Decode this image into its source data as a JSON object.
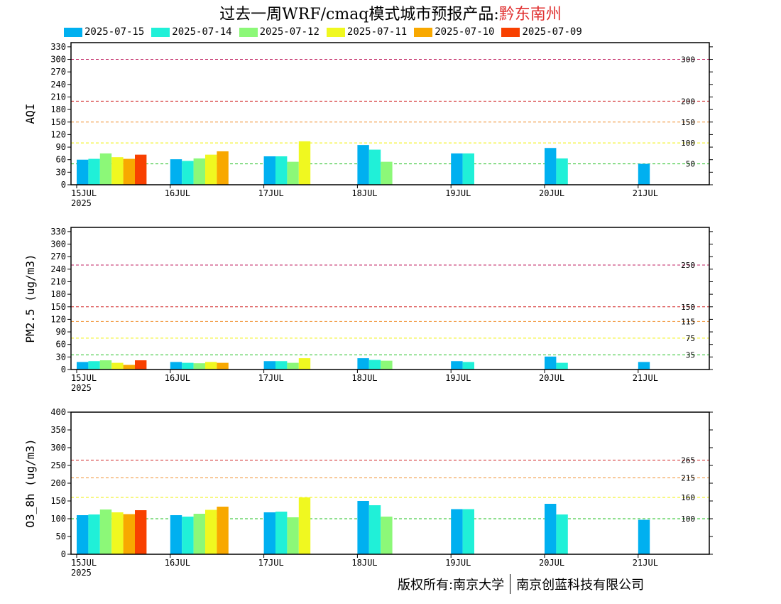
{
  "title": {
    "prefix": "过去一周WRF/cmaq模式城市预报产品:",
    "city": "黔东南州"
  },
  "footer": {
    "left": "版权所有:南京大学",
    "right": "南京创蓝科技有限公司"
  },
  "colors": {
    "2025-07-15": "#00b0f0",
    "2025-07-14": "#20f0d8",
    "2025-07-12": "#8cf878",
    "2025-07-11": "#f0f820",
    "2025-07-10": "#f8a800",
    "2025-07-09": "#f84000"
  },
  "chart_data": [
    {
      "type": "bar",
      "ylabel": "AQI",
      "ylim": [
        0,
        340
      ],
      "yticks": [
        0,
        30,
        60,
        90,
        120,
        150,
        180,
        210,
        240,
        270,
        300,
        330
      ],
      "xtick_labels": [
        "15JUL",
        "16JUL",
        "17JUL",
        "18JUL",
        "19JUL",
        "20JUL",
        "21JUL"
      ],
      "year_label": "2025",
      "thresholds": [
        {
          "value": 300,
          "label": "300",
          "color": "#c02060"
        },
        {
          "value": 200,
          "label": "200",
          "color": "#d02020"
        },
        {
          "value": 150,
          "label": "150",
          "color": "#f09030"
        },
        {
          "value": 100,
          "label": "100",
          "color": "#f0f000"
        },
        {
          "value": 50,
          "label": "50",
          "color": "#20c020"
        }
      ],
      "series": [
        {
          "name": "2025-07-15",
          "values": [
            60,
            61,
            68,
            95,
            75,
            88,
            50
          ]
        },
        {
          "name": "2025-07-14",
          "values": [
            62,
            57,
            68,
            84,
            75,
            63,
            null
          ]
        },
        {
          "name": "2025-07-12",
          "values": [
            75,
            63,
            55,
            55,
            null,
            null,
            null
          ]
        },
        {
          "name": "2025-07-11",
          "values": [
            66,
            72,
            104,
            null,
            null,
            null,
            null
          ]
        },
        {
          "name": "2025-07-10",
          "values": [
            62,
            80,
            null,
            null,
            null,
            null,
            null
          ]
        },
        {
          "name": "2025-07-09",
          "values": [
            72,
            null,
            null,
            null,
            null,
            null,
            null
          ]
        }
      ]
    },
    {
      "type": "bar",
      "ylabel": "PM2.5 (ug/m3)",
      "ylim": [
        0,
        340
      ],
      "yticks": [
        0,
        30,
        60,
        90,
        120,
        150,
        180,
        210,
        240,
        270,
        300,
        330
      ],
      "xtick_labels": [
        "15JUL",
        "16JUL",
        "17JUL",
        "18JUL",
        "19JUL",
        "20JUL",
        "21JUL"
      ],
      "year_label": "2025",
      "thresholds": [
        {
          "value": 250,
          "label": "250",
          "color": "#c02060"
        },
        {
          "value": 150,
          "label": "150",
          "color": "#d02020"
        },
        {
          "value": 115,
          "label": "115",
          "color": "#f09030"
        },
        {
          "value": 75,
          "label": "75",
          "color": "#f0f000"
        },
        {
          "value": 35,
          "label": "35",
          "color": "#20c020"
        }
      ],
      "series": [
        {
          "name": "2025-07-15",
          "values": [
            18,
            18,
            20,
            27,
            20,
            31,
            18
          ]
        },
        {
          "name": "2025-07-14",
          "values": [
            20,
            16,
            20,
            23,
            18,
            16,
            null
          ]
        },
        {
          "name": "2025-07-12",
          "values": [
            22,
            15,
            16,
            21,
            null,
            null,
            null
          ]
        },
        {
          "name": "2025-07-11",
          "values": [
            16,
            18,
            27,
            null,
            null,
            null,
            null
          ]
        },
        {
          "name": "2025-07-10",
          "values": [
            11,
            16,
            null,
            null,
            null,
            null,
            null
          ]
        },
        {
          "name": "2025-07-09",
          "values": [
            22,
            null,
            null,
            null,
            null,
            null,
            null
          ]
        }
      ]
    },
    {
      "type": "bar",
      "ylabel": "O3_8h (ug/m3)",
      "ylim": [
        0,
        400
      ],
      "yticks": [
        0,
        50,
        100,
        150,
        200,
        250,
        300,
        350,
        400
      ],
      "xtick_labels": [
        "15JUL",
        "16JUL",
        "17JUL",
        "18JUL",
        "19JUL",
        "20JUL",
        "21JUL"
      ],
      "year_label": "2025",
      "thresholds": [
        {
          "value": 265,
          "label": "265",
          "color": "#d02020"
        },
        {
          "value": 215,
          "label": "215",
          "color": "#f09030"
        },
        {
          "value": 160,
          "label": "160",
          "color": "#f0f000"
        },
        {
          "value": 100,
          "label": "100",
          "color": "#20c020"
        }
      ],
      "series": [
        {
          "name": "2025-07-15",
          "values": [
            110,
            110,
            118,
            150,
            127,
            142,
            97
          ]
        },
        {
          "name": "2025-07-14",
          "values": [
            112,
            106,
            120,
            138,
            127,
            112,
            null
          ]
        },
        {
          "name": "2025-07-12",
          "values": [
            126,
            114,
            104,
            106,
            null,
            null,
            null
          ]
        },
        {
          "name": "2025-07-11",
          "values": [
            118,
            125,
            160,
            null,
            null,
            null,
            null
          ]
        },
        {
          "name": "2025-07-10",
          "values": [
            113,
            134,
            null,
            null,
            null,
            null,
            null
          ]
        },
        {
          "name": "2025-07-09",
          "values": [
            124,
            null,
            null,
            null,
            null,
            null,
            null
          ]
        }
      ]
    }
  ]
}
